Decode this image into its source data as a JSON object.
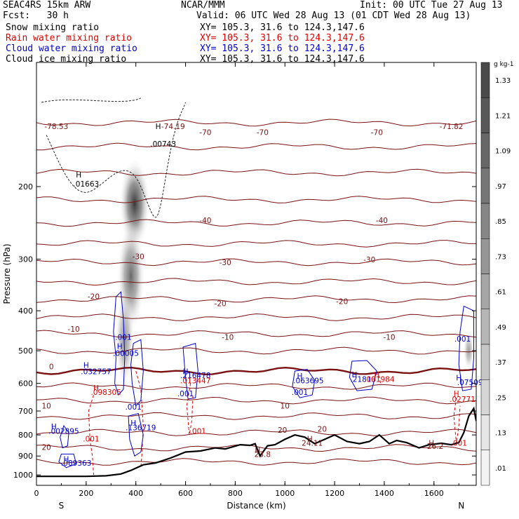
{
  "header": {
    "model": "SEAC4RS 15km ARW",
    "center": "NCAR/MMM",
    "init": "Init: 00 UTC Tue 27 Aug 13",
    "fcst": "Fcst:   30 h",
    "valid": "Valid: 06 UTC Wed 28 Aug 13 (01 CDT Wed 28 Aug 13)"
  },
  "fields": [
    {
      "name": "Snow mixing ratio",
      "xy": "XY= 105.3, 31.6 to 124.3,147.6",
      "color": "#000000"
    },
    {
      "name": "Rain water mixing ratio",
      "xy": "XY= 105.3, 31.6 to 124.3,147.6",
      "color": "#e00000"
    },
    {
      "name": "Cloud water mixing ratio",
      "xy": "XY= 105.3, 31.6 to 124.3,147.6",
      "color": "#0000cc"
    },
    {
      "name": "Cloud ice mixing ratio",
      "xy": "XY= 105.3, 31.6 to 124.3,147.6",
      "color": "#000000"
    }
  ],
  "chart_data": {
    "type": "cross-section",
    "xlabel": "Distance (km)",
    "ylabel": "Pressure (hPa)",
    "xlim": [
      0,
      1770
    ],
    "ylim": [
      1060,
      100
    ],
    "y_scale": "log",
    "x_ticks": [
      "0",
      "200",
      "400",
      "600",
      "800",
      "1000",
      "1200",
      "1400",
      "1600"
    ],
    "y_ticks": [
      "200",
      "300",
      "400",
      "500",
      "600",
      "700",
      "800",
      "900",
      "1000"
    ],
    "endpoints": {
      "left": "S",
      "right": "N"
    },
    "colorbar": {
      "unit": "g kg-1",
      "levels": [
        "1.33",
        "1.21",
        "1.09",
        ".97",
        ".85",
        ".73",
        ".61",
        ".49",
        ".37",
        ".25",
        ".13",
        ".01"
      ],
      "colors": [
        "#4a4a4a",
        "#585858",
        "#676767",
        "#767676",
        "#868686",
        "#969696",
        "#a6a6a6",
        "#b6b6b6",
        "#c6c6c6",
        "#d6d6d6",
        "#e6e6e6",
        "#f3f3f3"
      ]
    },
    "temperature_isotherms": {
      "color": "#7a1212",
      "freezing_level_label": "0",
      "labels": [
        {
          "text": "-78.53",
          "x": 80,
          "p": 145
        },
        {
          "text": "-74.19",
          "x": 550,
          "p": 145
        },
        {
          "text": "-71.82",
          "x": 1670,
          "p": 145
        },
        {
          "text": "-70",
          "x": 680,
          "p": 150
        },
        {
          "text": "-70",
          "x": 910,
          "p": 150
        },
        {
          "text": "-70",
          "x": 1370,
          "p": 150
        },
        {
          "text": "-40",
          "x": 680,
          "p": 245
        },
        {
          "text": "-40",
          "x": 1390,
          "p": 245
        },
        {
          "text": "-30",
          "x": 410,
          "p": 300
        },
        {
          "text": "-30",
          "x": 760,
          "p": 310
        },
        {
          "text": "-30",
          "x": 1340,
          "p": 305
        },
        {
          "text": "-20",
          "x": 230,
          "p": 375
        },
        {
          "text": "-20",
          "x": 740,
          "p": 390
        },
        {
          "text": "-20",
          "x": 1230,
          "p": 385
        },
        {
          "text": "-10",
          "x": 150,
          "p": 450
        },
        {
          "text": "-10",
          "x": 770,
          "p": 470
        },
        {
          "text": "-10",
          "x": 1420,
          "p": 470
        },
        {
          "text": "0",
          "x": 60,
          "p": 555
        },
        {
          "text": "10",
          "x": 40,
          "p": 690
        },
        {
          "text": "10",
          "x": 1000,
          "p": 690
        },
        {
          "text": "20",
          "x": 990,
          "p": 790
        },
        {
          "text": "20",
          "x": 1150,
          "p": 785
        },
        {
          "text": "20",
          "x": 40,
          "p": 870
        }
      ]
    },
    "cloud_water_labels": [
      {
        "text": "H",
        "x": 335,
        "p": 495
      },
      {
        "text": ".00005",
        "x": 360,
        "p": 515
      },
      {
        "text": ".001",
        "x": 350,
        "p": 470
      },
      {
        "text": "H",
        "x": 200,
        "p": 550
      },
      {
        "text": ".032757",
        "x": 240,
        "p": 570
      },
      {
        "text": "H",
        "x": 600,
        "p": 570
      },
      {
        "text": ".216478",
        "x": 640,
        "p": 582
      },
      {
        "text": ".001",
        "x": 600,
        "p": 645
      },
      {
        "text": ".001",
        "x": 390,
        "p": 695
      },
      {
        "text": "H",
        "x": 70,
        "p": 775
      },
      {
        "text": ".002895",
        "x": 110,
        "p": 795
      },
      {
        "text": "H",
        "x": 390,
        "p": 760
      },
      {
        "text": ".136719",
        "x": 420,
        "p": 780
      },
      {
        "text": "H",
        "x": 1060,
        "p": 585
      },
      {
        "text": ".063695",
        "x": 1095,
        "p": 600
      },
      {
        "text": ".001",
        "x": 1060,
        "p": 640
      },
      {
        "text": "H",
        "x": 1280,
        "p": 580
      },
      {
        "text": ".21813",
        "x": 1315,
        "p": 595
      },
      {
        "text": ".001",
        "x": 1715,
        "p": 475
      },
      {
        "text": "H",
        "x": 1700,
        "p": 590
      },
      {
        "text": ".07509",
        "x": 1745,
        "p": 605
      },
      {
        "text": "H",
        "x": 120,
        "p": 930
      },
      {
        "text": ".089363",
        "x": 160,
        "p": 950
      }
    ],
    "rain_labels": [
      {
        "text": "H",
        "x": 240,
        "p": 625
      },
      {
        "text": ".098305",
        "x": 280,
        "p": 640
      },
      {
        "text": ".013447",
        "x": 640,
        "p": 600
      },
      {
        "text": ".001",
        "x": 650,
        "p": 795
      },
      {
        "text": ".001",
        "x": 220,
        "p": 830
      },
      {
        "text": "H",
        "x": 1370,
        "p": 580
      },
      {
        "text": ".001984",
        "x": 1380,
        "p": 595
      },
      {
        "text": "H",
        "x": 1690,
        "p": 645
      },
      {
        "text": ".02771",
        "x": 1715,
        "p": 665
      },
      {
        "text": ".001",
        "x": 1700,
        "p": 850
      }
    ],
    "snow_labels": [
      {
        "text": "H",
        "x": 490,
        "p": 145
      },
      {
        "text": ".00743",
        "x": 510,
        "p": 160
      },
      {
        "text": "H",
        "x": 170,
        "p": 190
      },
      {
        "text": ".01663",
        "x": 200,
        "p": 200
      }
    ],
    "terrain_labels": [
      {
        "text": "H",
        "x": 890,
        "p": 885
      },
      {
        "text": "23.8",
        "x": 910,
        "p": 905
      },
      {
        "text": "H",
        "x": 1100,
        "p": 830
      },
      {
        "text": "24.11",
        "x": 1110,
        "p": 850
      },
      {
        "text": "H",
        "x": 1590,
        "p": 850
      },
      {
        "text": "26.2",
        "x": 1605,
        "p": 865
      }
    ],
    "terrain_surface": [
      [
        0,
        1008
      ],
      [
        100,
        1008
      ],
      [
        200,
        1008
      ],
      [
        280,
        1005
      ],
      [
        340,
        995
      ],
      [
        380,
        975
      ],
      [
        430,
        945
      ],
      [
        480,
        935
      ],
      [
        540,
        910
      ],
      [
        600,
        880
      ],
      [
        660,
        875
      ],
      [
        720,
        860
      ],
      [
        760,
        865
      ],
      [
        820,
        845
      ],
      [
        860,
        848
      ],
      [
        880,
        840
      ],
      [
        900,
        900
      ],
      [
        930,
        850
      ],
      [
        960,
        845
      ],
      [
        1000,
        820
      ],
      [
        1040,
        800
      ],
      [
        1080,
        810
      ],
      [
        1120,
        840
      ],
      [
        1160,
        820
      ],
      [
        1200,
        800
      ],
      [
        1250,
        830
      ],
      [
        1300,
        840
      ],
      [
        1340,
        830
      ],
      [
        1380,
        800
      ],
      [
        1420,
        840
      ],
      [
        1450,
        825
      ],
      [
        1490,
        835
      ],
      [
        1540,
        860
      ],
      [
        1580,
        845
      ],
      [
        1630,
        838
      ],
      [
        1670,
        845
      ],
      [
        1700,
        835
      ],
      [
        1720,
        790
      ],
      [
        1740,
        720
      ],
      [
        1760,
        690
      ],
      [
        1770,
        740
      ]
    ]
  }
}
